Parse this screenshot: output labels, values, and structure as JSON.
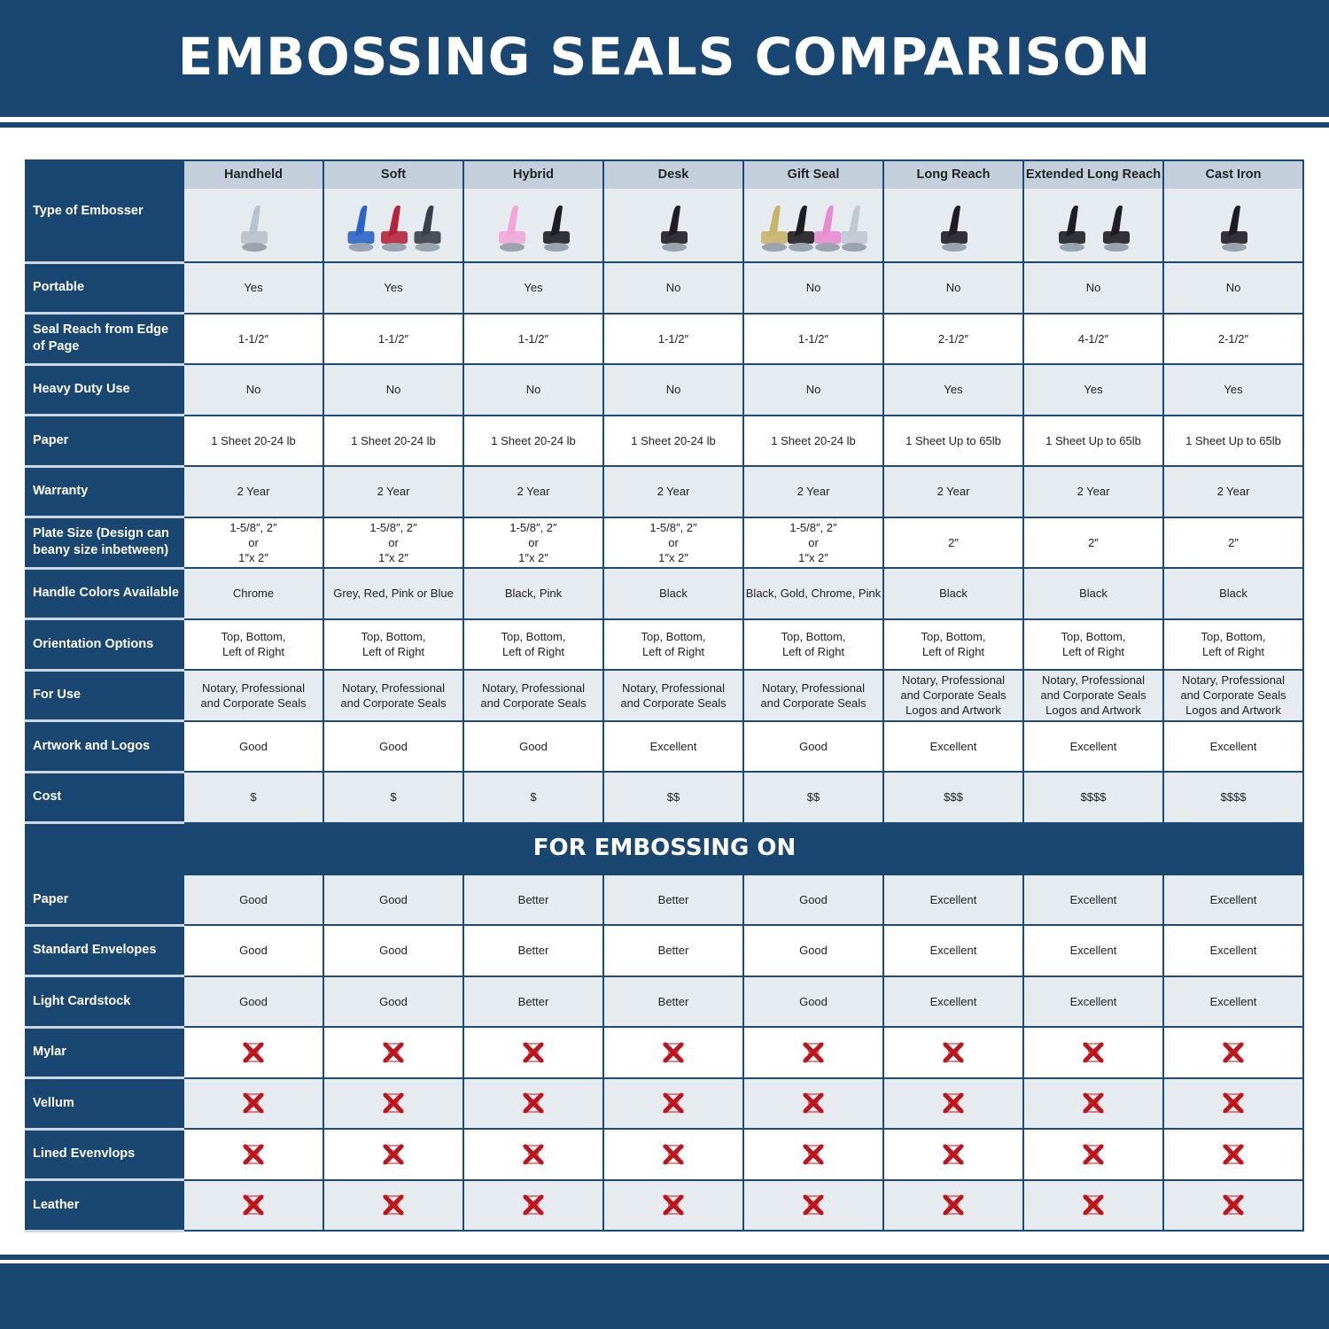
{
  "title": "EMBOSSING SEALS COMPARISON",
  "type_label": "Type of Embosser",
  "columns": [
    {
      "name": "Handheld",
      "image": "chrome-handheld-embosser",
      "colors": [
        "#b8c2cc"
      ]
    },
    {
      "name": "Soft",
      "image": "soft-embossers",
      "colors": [
        "#2b63c9",
        "#b5243a",
        "#3a3f4a"
      ]
    },
    {
      "name": "Hybrid",
      "image": "hybrid-embossers",
      "colors": [
        "#f2a6d8",
        "#1e1e22"
      ]
    },
    {
      "name": "Desk",
      "image": "desk-embosser",
      "colors": [
        "#1e1e22"
      ]
    },
    {
      "name": "Gift Seal",
      "image": "gift-seal-embossers",
      "colors": [
        "#c9b26a",
        "#1e1e22",
        "#e98bd0",
        "#c0c8d0"
      ]
    },
    {
      "name": "Long Reach",
      "image": "long-reach-embosser",
      "colors": [
        "#1e1e22"
      ]
    },
    {
      "name": "Extended Long Reach",
      "image": "extended-long-reach-embossers",
      "colors": [
        "#1e1e22",
        "#1e1e22"
      ]
    },
    {
      "name": "Cast Iron",
      "image": "cast-iron-embosser",
      "colors": [
        "#1e1e22"
      ]
    }
  ],
  "rows": [
    {
      "label": "Portable",
      "values": [
        "Yes",
        "Yes",
        "Yes",
        "No",
        "No",
        "No",
        "No",
        "No"
      ]
    },
    {
      "label": "Seal Reach from Edge of Page",
      "values": [
        "1-1/2″",
        "1-1/2″",
        "1-1/2″",
        "1-1/2″",
        "1-1/2″",
        "2-1/2″",
        "4-1/2″",
        "2-1/2″"
      ]
    },
    {
      "label": "Heavy Duty Use",
      "values": [
        "No",
        "No",
        "No",
        "No",
        "No",
        "Yes",
        "Yes",
        "Yes"
      ]
    },
    {
      "label": "Paper",
      "values": [
        "1 Sheet 20-24 lb",
        "1 Sheet 20-24 lb",
        "1 Sheet 20-24 lb",
        "1 Sheet 20-24 lb",
        "1 Sheet 20-24 lb",
        "1 Sheet Up to 65lb",
        "1 Sheet Up to 65lb",
        "1 Sheet Up to 65lb"
      ]
    },
    {
      "label": "Warranty",
      "values": [
        "2 Year",
        "2 Year",
        "2 Year",
        "2 Year",
        "2 Year",
        "2 Year",
        "2 Year",
        "2 Year"
      ]
    },
    {
      "label": "Plate Size (Design can beany size inbetween)",
      "values": [
        "1-5/8″, 2″\nor\n1″x 2″",
        "1-5/8″, 2″\nor\n1″x 2″",
        "1-5/8″, 2″\nor\n1″x 2″",
        "1-5/8″, 2″\nor\n1″x 2″",
        "1-5/8″, 2″\nor\n1″x 2″",
        "2″",
        "2″",
        "2″"
      ]
    },
    {
      "label": "Handle Colors Available",
      "values": [
        "Chrome",
        "Grey, Red, Pink or Blue",
        "Black, Pink",
        "Black",
        "Black, Gold, Chrome, Pink",
        "Black",
        "Black",
        "Black"
      ]
    },
    {
      "label": "Orientation Options",
      "values": [
        "Top, Bottom,\nLeft of Right",
        "Top, Bottom,\nLeft of Right",
        "Top, Bottom,\nLeft of Right",
        "Top, Bottom,\nLeft of Right",
        "Top, Bottom,\nLeft of Right",
        "Top, Bottom,\nLeft of Right",
        "Top, Bottom,\nLeft of Right",
        "Top, Bottom,\nLeft of Right"
      ]
    },
    {
      "label": "For Use",
      "values": [
        "Notary, Professional\nand Corporate Seals",
        "Notary, Professional\nand Corporate Seals",
        "Notary, Professional\nand Corporate Seals",
        "Notary, Professional\nand Corporate Seals",
        "Notary, Professional\nand Corporate Seals",
        "Notary, Professional\nand Corporate Seals\nLogos and Artwork",
        "Notary, Professional\nand Corporate Seals\nLogos and Artwork",
        "Notary, Professional\nand Corporate Seals\nLogos and Artwork"
      ]
    },
    {
      "label": "Artwork and Logos",
      "values": [
        "Good",
        "Good",
        "Good",
        "Excellent",
        "Good",
        "Excellent",
        "Excellent",
        "Excellent"
      ]
    },
    {
      "label": "Cost",
      "values": [
        "$",
        "$",
        "$",
        "$$",
        "$$",
        "$$$",
        "$$$$",
        "$$$$"
      ]
    }
  ],
  "section_title": "FOR EMBOSSING ON",
  "embossing_rows": [
    {
      "label": "Paper",
      "values": [
        "Good",
        "Good",
        "Better",
        "Better",
        "Good",
        "Excellent",
        "Excellent",
        "Excellent"
      ]
    },
    {
      "label": "Standard Envelopes",
      "values": [
        "Good",
        "Good",
        "Better",
        "Better",
        "Good",
        "Excellent",
        "Excellent",
        "Excellent"
      ]
    },
    {
      "label": "Light Cardstock",
      "values": [
        "Good",
        "Good",
        "Better",
        "Better",
        "Good",
        "Excellent",
        "Excellent",
        "Excellent"
      ]
    },
    {
      "label": "Mylar",
      "values": [
        "x-icon",
        "x-icon",
        "x-icon",
        "x-icon",
        "x-icon",
        "x-icon",
        "x-icon",
        "x-icon"
      ]
    },
    {
      "label": "Vellum",
      "values": [
        "x-icon",
        "x-icon",
        "x-icon",
        "x-icon",
        "x-icon",
        "x-icon",
        "x-icon",
        "x-icon"
      ]
    },
    {
      "label": "Lined Evenvlops",
      "values": [
        "x-icon",
        "x-icon",
        "x-icon",
        "x-icon",
        "x-icon",
        "x-icon",
        "x-icon",
        "x-icon"
      ]
    },
    {
      "label": "Leather",
      "values": [
        "x-icon",
        "x-icon",
        "x-icon",
        "x-icon",
        "x-icon",
        "x-icon",
        "x-icon",
        "x-icon"
      ]
    }
  ],
  "colors": {
    "navy": "#1a4672",
    "header_gray": "#c3d0dc",
    "row_gray": "#e6ebf0",
    "x_red": "#c0141c"
  }
}
